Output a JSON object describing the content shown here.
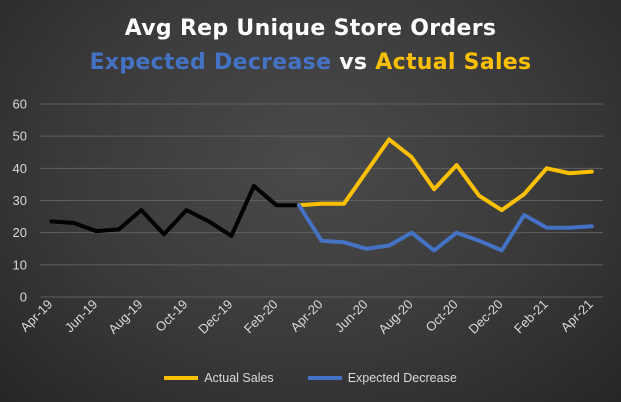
{
  "title": {
    "line1": "Avg Rep Unique Store Orders",
    "expected": "Expected Decrease",
    "vs": "vs",
    "actual": "Actual Sales"
  },
  "colors": {
    "history": "#000000",
    "actual": "#ffc000",
    "expected": "#4472c4",
    "grid": "#5f5f5f",
    "text": "#d9d9d9"
  },
  "chart_data": {
    "type": "line",
    "categories": [
      "Apr-19",
      "May-19",
      "Jun-19",
      "Jul-19",
      "Aug-19",
      "Sep-19",
      "Oct-19",
      "Nov-19",
      "Dec-19",
      "Jan-20",
      "Feb-20",
      "Mar-20",
      "Apr-20",
      "May-20",
      "Jun-20",
      "Jul-20",
      "Aug-20",
      "Sep-20",
      "Oct-20",
      "Nov-20",
      "Dec-20",
      "Jan-21",
      "Feb-21",
      "Mar-21",
      "Apr-21"
    ],
    "tick_labels": [
      "Apr-19",
      "Jun-19",
      "Aug-19",
      "Oct-19",
      "Dec-19",
      "Feb-20",
      "Apr-20",
      "Jun-20",
      "Aug-20",
      "Oct-20",
      "Dec-20",
      "Feb-21",
      "Apr-21"
    ],
    "series": [
      {
        "key": "history",
        "values": [
          23.5,
          23,
          20.5,
          21,
          27,
          19.5,
          27,
          23.5,
          19,
          34.5,
          28.5,
          28.5,
          null,
          null,
          null,
          null,
          null,
          null,
          null,
          null,
          null,
          null,
          null,
          null,
          null
        ]
      },
      {
        "name": "Actual Sales",
        "key": "actual",
        "values": [
          null,
          null,
          null,
          null,
          null,
          null,
          null,
          null,
          null,
          null,
          null,
          28.5,
          29,
          29,
          39,
          49,
          43.5,
          33.5,
          41,
          31.5,
          27,
          32,
          40,
          38.5,
          39
        ]
      },
      {
        "name": "Expected Decrease",
        "key": "expected",
        "values": [
          null,
          null,
          null,
          null,
          null,
          null,
          null,
          null,
          null,
          null,
          null,
          28.5,
          17.5,
          17,
          15,
          16,
          20,
          14.5,
          20,
          17.5,
          14.5,
          25.5,
          21.5,
          21.5,
          22
        ]
      }
    ],
    "yticks": [
      0,
      10,
      20,
      30,
      40,
      50,
      60
    ],
    "ylim": [
      0,
      60
    ],
    "grid": true,
    "legend": "bottom"
  },
  "legend": {
    "actual_label": "Actual Sales",
    "expected_label": "Expected Decrease"
  }
}
